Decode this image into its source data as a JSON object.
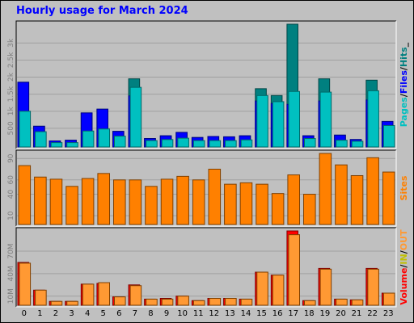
{
  "title": "Hourly usage for March 2024",
  "colors": {
    "background": "#c0c0c0",
    "panel": "#c0c0c0",
    "title": "#0000ff",
    "pages": "#00c0c0",
    "files": "#0000ff",
    "hits": "#008080",
    "sites": "#ff8000",
    "in": "#c0c000",
    "out": "#ff9933",
    "volume": "#ff0000"
  },
  "chart_data": [
    {
      "type": "bar",
      "name": "hits-files-pages",
      "categories": [
        "0",
        "1",
        "2",
        "3",
        "4",
        "5",
        "6",
        "7",
        "8",
        "9",
        "10",
        "11",
        "12",
        "13",
        "14",
        "15",
        "16",
        "17",
        "18",
        "19",
        "20",
        "21",
        "22",
        "23"
      ],
      "yticks": [
        "500",
        "1k",
        "1.5k",
        "2k",
        "2.5k",
        "3k"
      ],
      "ylim": [
        0,
        3550
      ],
      "grid": true,
      "legend": [
        {
          "label": "Pages",
          "color": "#00c0c0"
        },
        {
          "label": "Files",
          "color": "#0000ff"
        },
        {
          "label": "Hits",
          "color": "#008080"
        }
      ],
      "legend_separator": "/",
      "legend_suffix": "_",
      "series": [
        {
          "name": "Hits",
          "values": [
            1850,
            560,
            130,
            150,
            950,
            1060,
            410,
            1950,
            200,
            280,
            380,
            230,
            260,
            250,
            280,
            1660,
            1460,
            3550,
            280,
            1950,
            300,
            170,
            1910,
            700
          ]
        },
        {
          "name": "Files",
          "values": [
            1850,
            560,
            130,
            150,
            950,
            1060,
            410,
            1450,
            200,
            280,
            380,
            230,
            260,
            250,
            280,
            1300,
            1230,
            1200,
            280,
            1300,
            300,
            170,
            1330,
            700
          ]
        },
        {
          "name": "Pages",
          "values": [
            1000,
            400,
            80,
            80,
            420,
            480,
            270,
            1700,
            140,
            170,
            210,
            140,
            140,
            140,
            160,
            1460,
            1280,
            1580,
            200,
            1560,
            150,
            120,
            1600,
            580
          ]
        }
      ]
    },
    {
      "type": "bar",
      "name": "sites",
      "categories": [
        "0",
        "1",
        "2",
        "3",
        "4",
        "5",
        "6",
        "7",
        "8",
        "9",
        "10",
        "11",
        "12",
        "13",
        "14",
        "15",
        "16",
        "17",
        "18",
        "19",
        "20",
        "21",
        "22",
        "23"
      ],
      "yticks": [
        "10",
        "40",
        "60",
        "90"
      ],
      "ylim": [
        0,
        97
      ],
      "grid": true,
      "legend": [
        {
          "label": "Sites",
          "color": "#ff8000"
        }
      ],
      "series": [
        {
          "name": "Sites",
          "values": [
            80,
            64,
            61,
            51,
            62,
            69,
            60,
            60,
            51,
            61,
            65,
            60,
            75,
            54,
            56,
            54,
            41,
            67,
            40,
            97,
            81,
            66,
            91,
            71
          ]
        }
      ]
    },
    {
      "type": "bar",
      "name": "volume-in-out",
      "categories": [
        "0",
        "1",
        "2",
        "3",
        "4",
        "5",
        "6",
        "7",
        "8",
        "9",
        "10",
        "11",
        "12",
        "13",
        "14",
        "15",
        "16",
        "17",
        "18",
        "19",
        "20",
        "21",
        "22",
        "23"
      ],
      "yticks": [
        "10M",
        "40M",
        "70M"
      ],
      "ylim": [
        0,
        97
      ],
      "grid": true,
      "legend": [
        {
          "label": "Volume",
          "color": "#ff0000"
        },
        {
          "label": "IN",
          "color": "#c0c000"
        },
        {
          "label": "OUT",
          "color": "#ff9933"
        }
      ],
      "legend_separator": "/",
      "series": [
        {
          "name": "Volume",
          "values": [
            55,
            18,
            3,
            3,
            26,
            27,
            9,
            25,
            6,
            7,
            10,
            4,
            7,
            7,
            6,
            42,
            38,
            97,
            4,
            47,
            6,
            5,
            47,
            14
          ]
        },
        {
          "name": "OUT",
          "values": [
            54,
            18,
            3,
            3,
            26,
            28,
            9,
            24,
            6,
            6,
            10,
            4,
            7,
            7,
            6,
            42,
            38,
            92,
            4,
            46,
            6,
            5,
            46,
            14
          ]
        }
      ]
    }
  ]
}
